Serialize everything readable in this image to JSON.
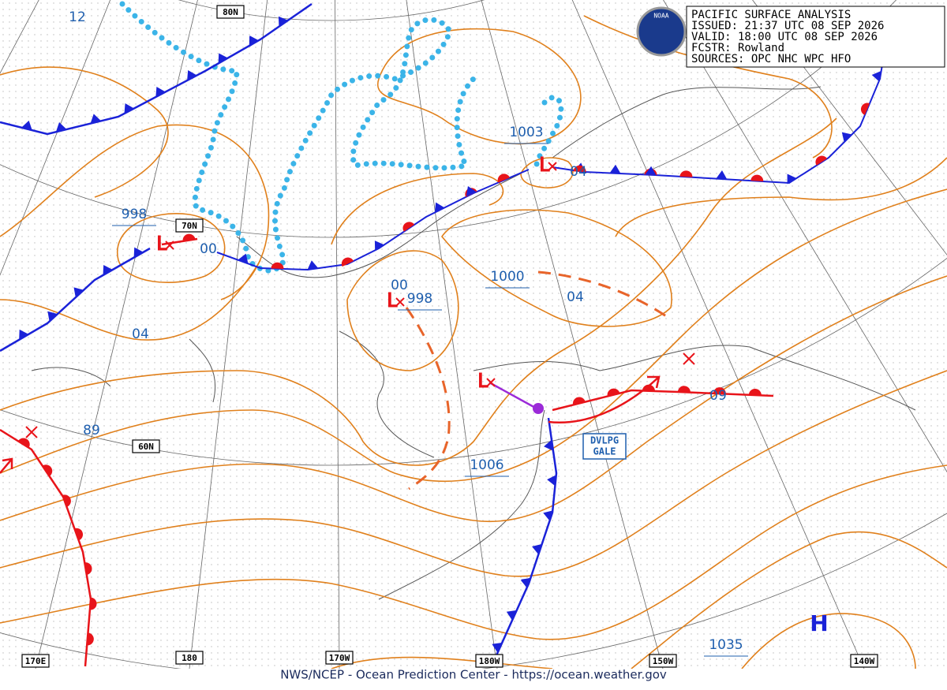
{
  "header": {
    "title": "PACIFIC SURFACE ANALYSIS",
    "issued": "ISSUED: 21:37 UTC 08 SEP 2026",
    "valid": "VALID:  18:00 UTC 08 SEP 2026",
    "forecaster": "FCSTR:  Rowland",
    "sources": "SOURCES: OPC NHC WPC HFO"
  },
  "logo": "NOAA",
  "symbols": {
    "low": "L",
    "high": "H"
  },
  "pressure_centers": [
    "1003",
    "998",
    "998",
    "1000",
    "1006",
    "1035"
  ],
  "isobar_labels": [
    "12",
    "00",
    "04",
    "89",
    "00",
    "04",
    "04",
    "09"
  ],
  "grid_labels": [
    "80N",
    "70N",
    "60N",
    "170E",
    "180",
    "170W",
    "180W",
    "150W",
    "140W"
  ],
  "warning": [
    "DVLPG",
    "GALE"
  ],
  "footer": "NWS/NCEP - Ocean Prediction Center - https://ocean.weather.gov"
}
